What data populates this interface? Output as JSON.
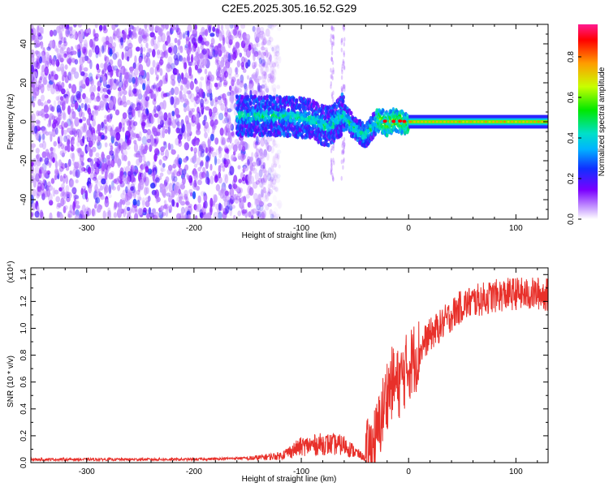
{
  "title": "C2E5.2025.305.16.52.G29",
  "chart_data": [
    {
      "type": "heatmap",
      "name": "spectrogram",
      "xlabel": "Height of straight line (km)",
      "ylabel": "Frequency (Hz)",
      "xlim": [
        -352,
        130
      ],
      "ylim": [
        -50,
        50
      ],
      "xticks": [
        -300,
        -200,
        -100,
        0,
        100
      ],
      "yticks": [
        -40,
        -20,
        0,
        20,
        40
      ],
      "colorbar": {
        "label": "Normalized spectral amplitude",
        "range": [
          0,
          0.96
        ],
        "ticks": [
          0.0,
          0.2,
          0.4,
          0.6,
          0.8
        ],
        "tick_labels": [
          "0.0",
          "0.2",
          "0.4",
          "0.6",
          "0.8"
        ]
      },
      "regions": [
        {
          "desc": "diffuse noise",
          "x_range": [
            -352,
            -140
          ],
          "freq_range": [
            -50,
            50
          ],
          "amplitude": 0.12
        },
        {
          "desc": "fading noise",
          "x_range": [
            -140,
            -120
          ],
          "freq_range": [
            -50,
            50
          ],
          "amplitude": 0.05
        },
        {
          "desc": "weak signal trace",
          "x_range": [
            -160,
            -60
          ],
          "freq_center": 3,
          "amplitude": 0.3
        },
        {
          "desc": "Doppler dip",
          "x_range": [
            -60,
            -30
          ],
          "freq_center": -6,
          "amplitude": 0.35
        },
        {
          "desc": "steady carrier",
          "x_range": [
            0,
            130
          ],
          "freq_center": 0,
          "amplitude": 0.6
        }
      ]
    },
    {
      "type": "line",
      "name": "snr",
      "xlabel": "Height of straight line (km)",
      "ylabel": "SNR (10 * v/v)",
      "scale_note": "(x10⁴)",
      "xlim": [
        -352,
        130
      ],
      "ylim": [
        0,
        1.45
      ],
      "xticks": [
        -300,
        -200,
        -100,
        0,
        100
      ],
      "yticks": [
        0.0,
        0.2,
        0.4,
        0.6,
        0.8,
        1.0,
        1.2,
        1.4
      ],
      "ytick_labels": [
        "0.0",
        "0.2",
        "0.4",
        "0.6",
        "0.8",
        "1.0",
        "1.2",
        "1.4"
      ],
      "series": [
        {
          "name": "SNR",
          "color": "#e8302a",
          "x": [
            -352,
            -300,
            -250,
            -200,
            -150,
            -120,
            -100,
            -80,
            -60,
            -50,
            -40,
            -30,
            -25,
            -20,
            -15,
            -10,
            -5,
            0,
            5,
            10,
            15,
            20,
            30,
            40,
            50,
            60,
            70,
            80,
            90,
            100,
            110,
            120,
            130
          ],
          "y": [
            0.02,
            0.02,
            0.02,
            0.02,
            0.03,
            0.05,
            0.12,
            0.14,
            0.13,
            0.08,
            0.03,
            0.18,
            0.35,
            0.52,
            0.6,
            0.58,
            0.65,
            0.72,
            0.78,
            0.82,
            0.9,
            0.95,
            1.02,
            1.1,
            1.17,
            1.2,
            1.22,
            1.24,
            1.25,
            1.26,
            1.25,
            1.26,
            1.25
          ]
        }
      ]
    }
  ]
}
